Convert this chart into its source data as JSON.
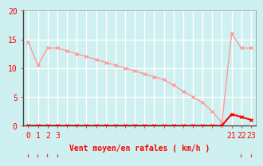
{
  "background_color": "#cff0f0",
  "grid_color": "#ffffff",
  "line1_color": "#ff9999",
  "line2_color": "#ff0000",
  "xlabel": "Vent moyen/en rafales ( km/h )",
  "xlabel_color": "#ff0000",
  "tick_color": "#ff0000",
  "ylim": [
    0,
    20
  ],
  "yticks": [
    0,
    5,
    10,
    15,
    20
  ],
  "hours": [
    0,
    1,
    2,
    3,
    4,
    5,
    6,
    7,
    8,
    9,
    10,
    11,
    12,
    13,
    14,
    15,
    16,
    17,
    18,
    19,
    20,
    21,
    22,
    23
  ],
  "rafales": [
    14.5,
    10.5,
    13.5,
    13.5,
    13.0,
    12.5,
    12.0,
    11.5,
    11.0,
    10.5,
    10.0,
    9.5,
    9.0,
    8.5,
    8.0,
    7.0,
    6.0,
    5.0,
    4.0,
    2.5,
    0.5,
    16.0,
    13.5,
    13.5
  ],
  "moyen": [
    0.0,
    0.0,
    0.0,
    0.0,
    0.0,
    0.0,
    0.0,
    0.0,
    0.0,
    0.0,
    0.0,
    0.0,
    0.0,
    0.0,
    0.0,
    0.0,
    0.0,
    0.0,
    0.0,
    0.0,
    0.0,
    2.0,
    1.5,
    1.0
  ],
  "arrow_hours": [
    0,
    1,
    2,
    3,
    22,
    23
  ],
  "xtick_hours": [
    0,
    1,
    2,
    3,
    21,
    22,
    23
  ]
}
